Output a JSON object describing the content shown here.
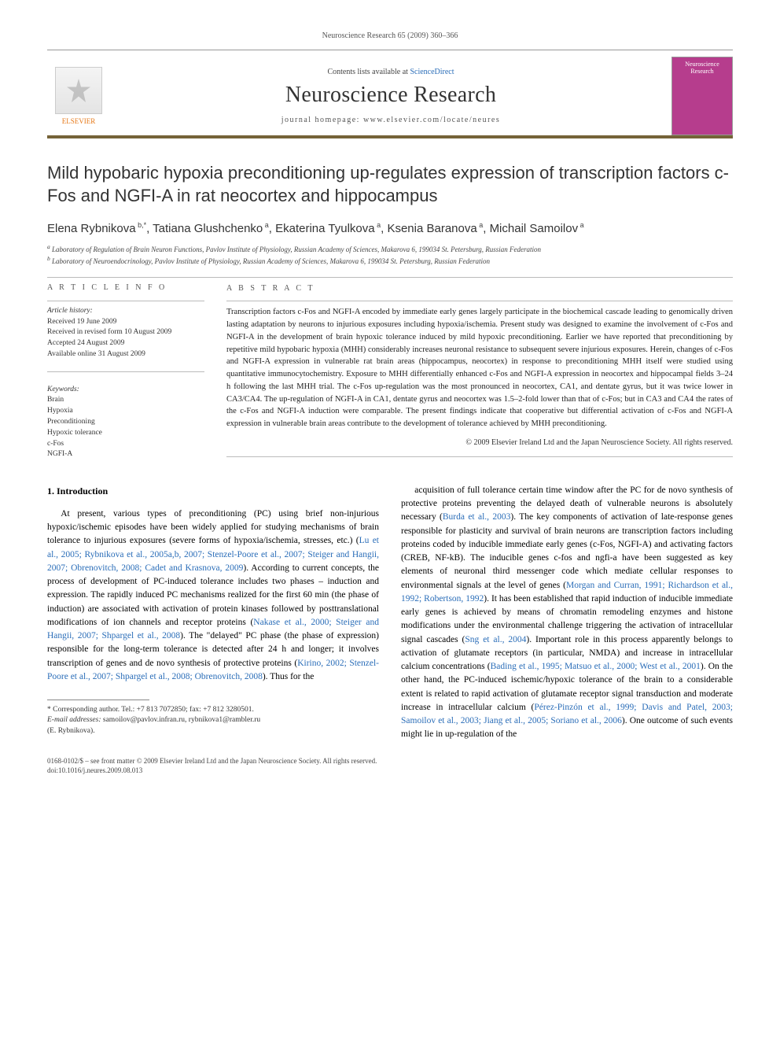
{
  "header": {
    "citation": "Neuroscience Research 65 (2009) 360–366"
  },
  "masthead": {
    "publisher": "ELSEVIER",
    "contents_prefix": "Contents lists available at ",
    "contents_link": "ScienceDirect",
    "journal": "Neuroscience Research",
    "homepage_prefix": "journal homepage: ",
    "homepage": "www.elsevier.com/locate/neures",
    "cover_label": "Neuroscience Research"
  },
  "article": {
    "title": "Mild hypobaric hypoxia preconditioning up-regulates expression of transcription factors c-Fos and NGFI-A in rat neocortex and hippocampus",
    "authors_html": "Elena Rybnikova|b,*|, Tatiana Glushchenko|a|, Ekaterina Tyulkova|a|, Ksenia Baranova|a|, Michail Samoilov|a|",
    "affiliations": {
      "a": "Laboratory of Regulation of Brain Neuron Functions, Pavlov Institute of Physiology, Russian Academy of Sciences, Makarova 6, 199034 St. Petersburg, Russian Federation",
      "b": "Laboratory of Neuroendocrinology, Pavlov Institute of Physiology, Russian Academy of Sciences, Makarova 6, 199034 St. Petersburg, Russian Federation"
    }
  },
  "info": {
    "heading": "A R T I C L E   I N F O",
    "history_label": "Article history:",
    "history": [
      "Received 19 June 2009",
      "Received in revised form 10 August 2009",
      "Accepted 24 August 2009",
      "Available online 31 August 2009"
    ],
    "keywords_label": "Keywords:",
    "keywords": [
      "Brain",
      "Hypoxia",
      "Preconditioning",
      "Hypoxic tolerance",
      "c-Fos",
      "NGFI-A"
    ]
  },
  "abstract": {
    "heading": "A B S T R A C T",
    "text": "Transcription factors c-Fos and NGFI-A encoded by immediate early genes largely participate in the biochemical cascade leading to genomically driven lasting adaptation by neurons to injurious exposures including hypoxia/ischemia. Present study was designed to examine the involvement of c-Fos and NGFI-A in the development of brain hypoxic tolerance induced by mild hypoxic preconditioning. Earlier we have reported that preconditioning by repetitive mild hypobaric hypoxia (MHH) considerably increases neuronal resistance to subsequent severe injurious exposures. Herein, changes of c-Fos and NGFI-A expression in vulnerable rat brain areas (hippocampus, neocortex) in response to preconditioning MHH itself were studied using quantitative immunocytochemistry. Exposure to MHH differentially enhanced c-Fos and NGFI-A expression in neocortex and hippocampal fields 3–24 h following the last MHH trial. The c-Fos up-regulation was the most pronounced in neocortex, CA1, and dentate gyrus, but it was twice lower in CA3/CA4. The up-regulation of NGFI-A in CA1, dentate gyrus and neocortex was 1.5–2-fold lower than that of c-Fos; but in CA3 and CA4 the rates of the c-Fos and NGFI-A induction were comparable. The present findings indicate that cooperative but differential activation of c-Fos and NGFI-A expression in vulnerable brain areas contribute to the development of tolerance achieved by MHH preconditioning.",
    "copyright": "© 2009 Elsevier Ireland Ltd and the Japan Neuroscience Society. All rights reserved."
  },
  "body": {
    "section_heading": "1. Introduction",
    "col1": "At present, various types of preconditioning (PC) using brief non-injurious hypoxic/ischemic episodes have been widely applied for studying mechanisms of brain tolerance to injurious exposures (severe forms of hypoxia/ischemia, stresses, etc.) (Lu et al., 2005; Rybnikova et al., 2005a,b, 2007; Stenzel-Poore et al., 2007; Steiger and Hangii, 2007; Obrenovitch, 2008; Cadet and Krasnova, 2009). According to current concepts, the process of development of PC-induced tolerance includes two phases – induction and expression. The rapidly induced PC mechanisms realized for the first 60 min (the phase of induction) are associated with activation of protein kinases followed by posttranslational modifications of ion channels and receptor proteins (Nakase et al., 2000; Steiger and Hangii, 2007; Shpargel et al., 2008). The \"delayed\" PC phase (the phase of expression) responsible for the long-term tolerance is detected after 24 h and longer; it involves transcription of genes and de novo synthesis of protective proteins (Kirino, 2002; Stenzel-Poore et al., 2007; Shpargel et al., 2008; Obrenovitch, 2008). Thus for the",
    "col2": "acquisition of full tolerance certain time window after the PC for de novo synthesis of protective proteins preventing the delayed death of vulnerable neurons is absolutely necessary (Burda et al., 2003). The key components of activation of late-response genes responsible for plasticity and survival of brain neurons are transcription factors including proteins coded by inducible immediate early genes (c-Fos, NGFI-A) and activating factors (CREB, NF-kB). The inducible genes c-fos and ngfi-a have been suggested as key elements of neuronal third messenger code which mediate cellular responses to environmental signals at the level of genes (Morgan and Curran, 1991; Richardson et al., 1992; Robertson, 1992). It has been established that rapid induction of inducible immediate early genes is achieved by means of chromatin remodeling enzymes and histone modifications under the environmental challenge triggering the activation of intracellular signal cascades (Sng et al., 2004). Important role in this process apparently belongs to activation of glutamate receptors (in particular, NMDA) and increase in intracellular calcium concentrations (Bading et al., 1995; Matsuo et al., 2000; West et al., 2001). On the other hand, the PC-induced ischemic/hypoxic tolerance of the brain to a considerable extent is related to rapid activation of glutamate receptor signal transduction and moderate increase in intracellular calcium (Pérez-Pinzón et al., 1999; Davis and Patel, 2003; Samoilov et al., 2003; Jiang et al., 2005; Soriano et al., 2006). One outcome of such events might lie in up-regulation of the"
  },
  "footnotes": {
    "corresponding": "* Corresponding author. Tel.: +7 813 7072850; fax: +7 812 3280501.",
    "email_label": "E-mail addresses:",
    "emails": "samoilov@pavlov.infran.ru, rybnikova1@rambler.ru",
    "email_author": "(E. Rybnikova)."
  },
  "footer": {
    "line1": "0168-0102/$ – see front matter © 2009 Elsevier Ireland Ltd and the Japan Neuroscience Society. All rights reserved.",
    "line2": "doi:10.1016/j.neures.2009.08.013"
  },
  "colors": {
    "accent_bar": "#756338",
    "link": "#2a6db8",
    "publisher": "#e67817",
    "cover": "#b63d8d"
  }
}
